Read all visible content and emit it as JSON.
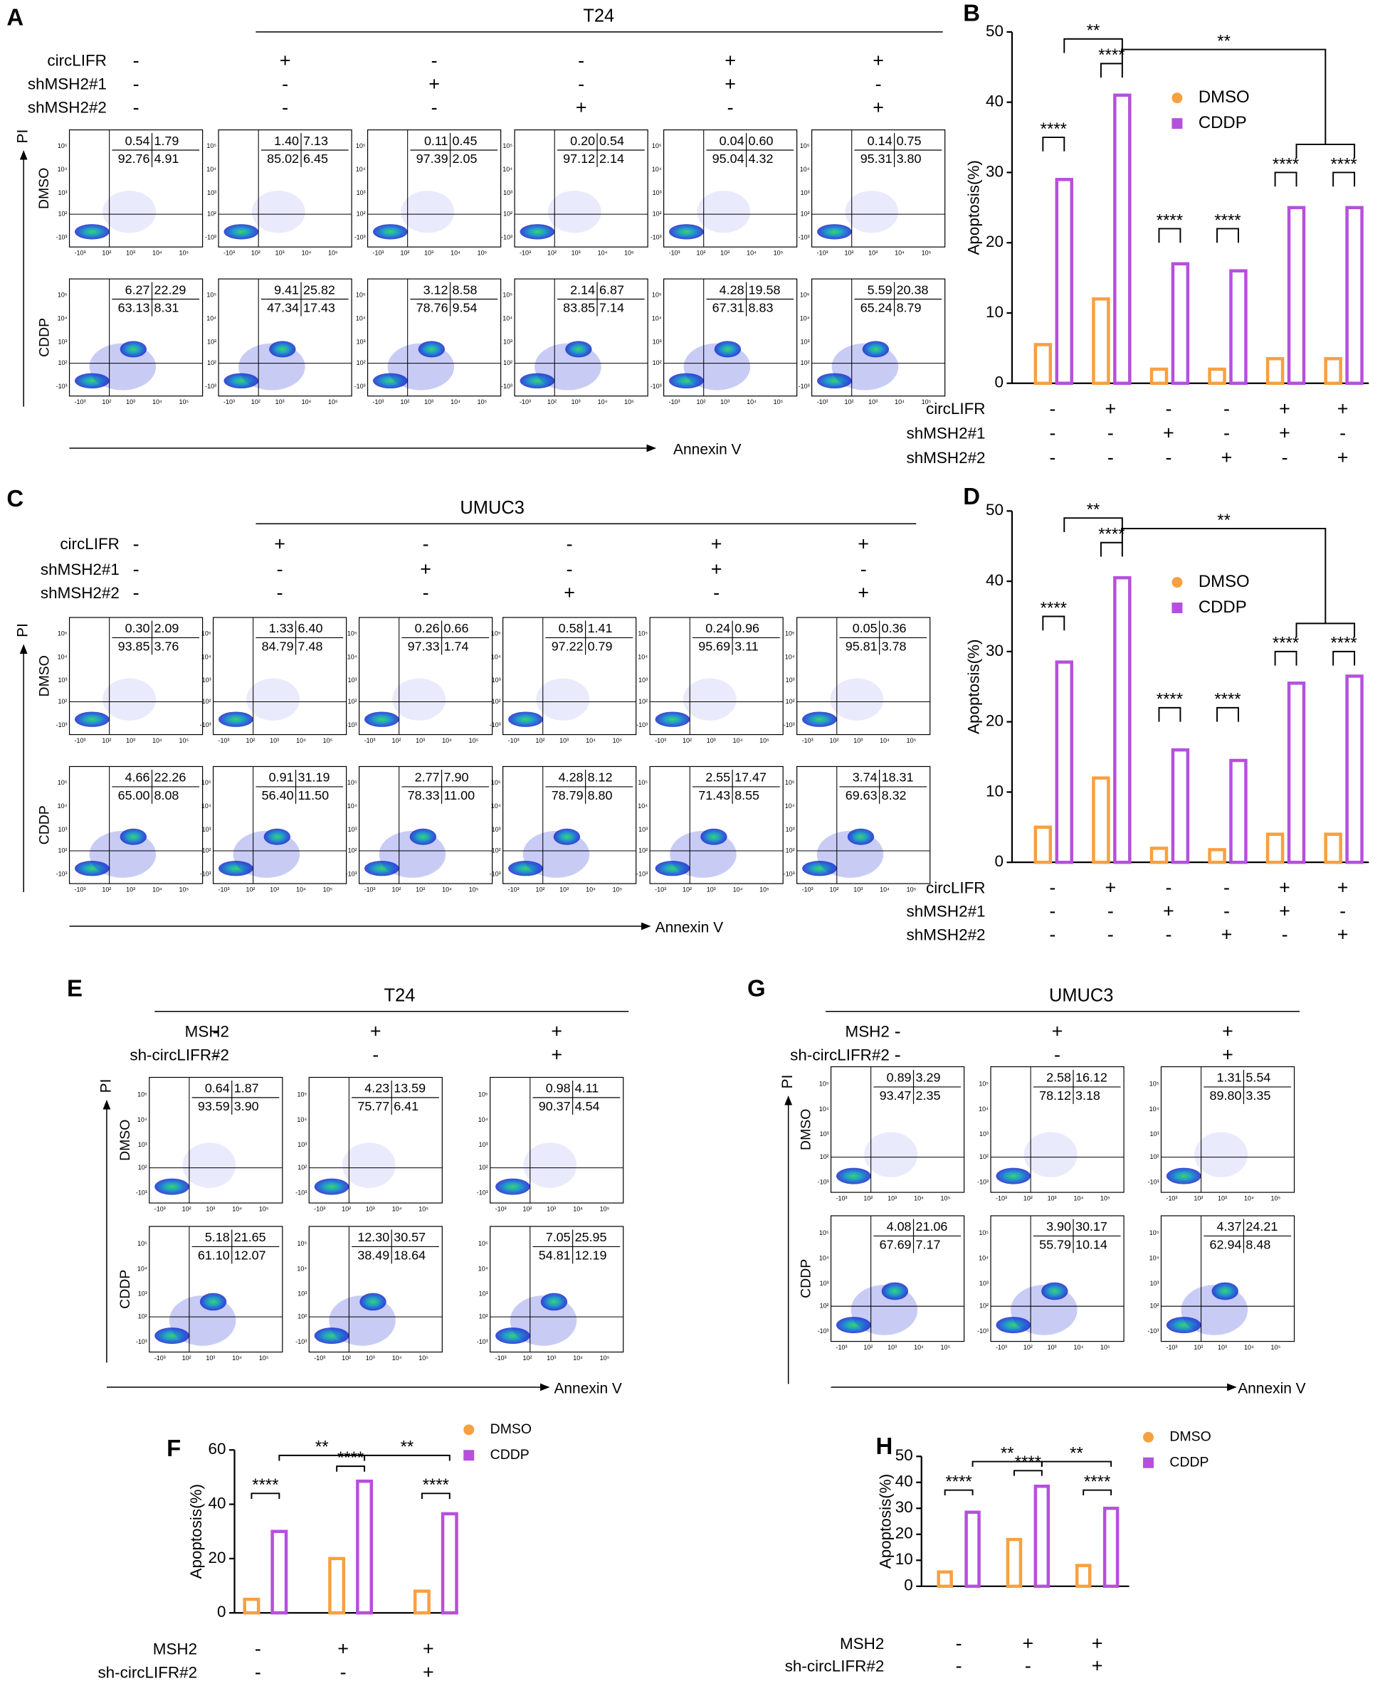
{
  "flow_panels": [
    {
      "label": "A",
      "title": "T24",
      "y_axis_label": "PI",
      "x_axis_label": "Annexin V",
      "ticks": [
        "-10³",
        "10²",
        "10³",
        "10⁴",
        "10⁵"
      ],
      "conditions": [
        {
          "name": "circLIFR",
          "values": [
            "-",
            "+",
            "-",
            "-",
            "+",
            "+"
          ]
        },
        {
          "name": "shMSH2#1",
          "values": [
            "-",
            "-",
            "+",
            "-",
            "+",
            "-"
          ]
        },
        {
          "name": "shMSH2#2",
          "values": [
            "-",
            "-",
            "-",
            "+",
            "-",
            "+"
          ]
        }
      ],
      "rows": [
        {
          "name": "DMSO",
          "plots": [
            [
              "0.54",
              "1.79",
              "92.76",
              "4.91"
            ],
            [
              "1.40",
              "7.13",
              "85.02",
              "6.45"
            ],
            [
              "0.11",
              "0.45",
              "97.39",
              "2.05"
            ],
            [
              "0.20",
              "0.54",
              "97.12",
              "2.14"
            ],
            [
              "0.04",
              "0.60",
              "95.04",
              "4.32"
            ],
            [
              "0.14",
              "0.75",
              "95.31",
              "3.80"
            ]
          ]
        },
        {
          "name": "CDDP",
          "plots": [
            [
              "6.27",
              "22.29",
              "63.13",
              "8.31"
            ],
            [
              "9.41",
              "25.82",
              "47.34",
              "17.43"
            ],
            [
              "3.12",
              "8.58",
              "78.76",
              "9.54"
            ],
            [
              "2.14",
              "6.87",
              "83.85",
              "7.14"
            ],
            [
              "4.28",
              "19.58",
              "67.31",
              "8.83"
            ],
            [
              "5.59",
              "20.38",
              "65.24",
              "8.79"
            ]
          ]
        }
      ]
    },
    {
      "label": "C",
      "title": "UMUC3",
      "y_axis_label": "PI",
      "x_axis_label": "Annexin V",
      "ticks": [
        "-10³",
        "10²",
        "10³",
        "10⁴",
        "10⁵"
      ],
      "conditions": [
        {
          "name": "circLIFR",
          "values": [
            "-",
            "+",
            "-",
            "-",
            "+",
            "+"
          ]
        },
        {
          "name": "shMSH2#1",
          "values": [
            "-",
            "-",
            "+",
            "-",
            "+",
            "-"
          ]
        },
        {
          "name": "shMSH2#2",
          "values": [
            "-",
            "-",
            "-",
            "+",
            "-",
            "+"
          ]
        }
      ],
      "rows": [
        {
          "name": "DMSO",
          "plots": [
            [
              "0.30",
              "2.09",
              "93.85",
              "3.76"
            ],
            [
              "1.33",
              "6.40",
              "84.79",
              "7.48"
            ],
            [
              "0.26",
              "0.66",
              "97.33",
              "1.74"
            ],
            [
              "0.58",
              "1.41",
              "97.22",
              "0.79"
            ],
            [
              "0.24",
              "0.96",
              "95.69",
              "3.11"
            ],
            [
              "0.05",
              "0.36",
              "95.81",
              "3.78"
            ]
          ]
        },
        {
          "name": "CDDP",
          "plots": [
            [
              "4.66",
              "22.26",
              "65.00",
              "8.08"
            ],
            [
              "0.91",
              "31.19",
              "56.40",
              "11.50"
            ],
            [
              "2.77",
              "7.90",
              "78.33",
              "11.00"
            ],
            [
              "4.28",
              "8.12",
              "78.79",
              "8.80"
            ],
            [
              "2.55",
              "17.47",
              "71.43",
              "8.55"
            ],
            [
              "3.74",
              "18.31",
              "69.63",
              "8.32"
            ]
          ]
        }
      ]
    },
    {
      "label": "E",
      "title": "T24",
      "y_axis_label": "PI",
      "x_axis_label": "Annexin V",
      "ticks": [
        "-10³",
        "10²",
        "10³",
        "10⁴",
        "10⁵"
      ],
      "conditions": [
        {
          "name": "MSH2",
          "values": [
            "-",
            "+",
            "+"
          ]
        },
        {
          "name": "sh-circLIFR#2",
          "values": [
            "-",
            "-",
            "+"
          ]
        }
      ],
      "rows": [
        {
          "name": "DMSO",
          "plots": [
            [
              "0.64",
              "1.87",
              "93.59",
              "3.90"
            ],
            [
              "4.23",
              "13.59",
              "75.77",
              "6.41"
            ],
            [
              "0.98",
              "4.11",
              "90.37",
              "4.54"
            ]
          ]
        },
        {
          "name": "CDDP",
          "plots": [
            [
              "5.18",
              "21.65",
              "61.10",
              "12.07"
            ],
            [
              "12.30",
              "30.57",
              "38.49",
              "18.64"
            ],
            [
              "7.05",
              "25.95",
              "54.81",
              "12.19"
            ]
          ]
        }
      ]
    },
    {
      "label": "G",
      "title": "UMUC3",
      "y_axis_label": "PI",
      "x_axis_label": "Annexin V",
      "ticks": [
        "-10³",
        "10²",
        "10³",
        "10⁴",
        "10⁵"
      ],
      "conditions": [
        {
          "name": "MSH2",
          "values": [
            "-",
            "+",
            "+"
          ]
        },
        {
          "name": "sh-circLIFR#2",
          "values": [
            "-",
            "-",
            "+"
          ]
        }
      ],
      "rows": [
        {
          "name": "DMSO",
          "plots": [
            [
              "0.89",
              "3.29",
              "93.47",
              "2.35"
            ],
            [
              "2.58",
              "16.12",
              "78.12",
              "3.18"
            ],
            [
              "1.31",
              "5.54",
              "89.80",
              "3.35"
            ]
          ]
        },
        {
          "name": "CDDP",
          "plots": [
            [
              "4.08",
              "21.06",
              "67.69",
              "7.17"
            ],
            [
              "3.90",
              "30.17",
              "55.79",
              "10.14"
            ],
            [
              "4.37",
              "24.21",
              "62.94",
              "8.48"
            ]
          ]
        }
      ]
    }
  ],
  "chart_data": [
    {
      "type": "bar",
      "label": "B",
      "y_label": "Apoptosis(%)",
      "ylim": [
        0,
        50
      ],
      "yticks": [
        0,
        10,
        20,
        30,
        40,
        50
      ],
      "series": [
        {
          "name": "DMSO",
          "color": "#f7a040",
          "values": [
            5.5,
            12,
            2,
            2,
            3.5,
            3.5
          ]
        },
        {
          "name": "CDDP",
          "color": "#b550dc",
          "values": [
            29,
            41,
            17,
            16,
            25,
            25
          ]
        }
      ],
      "conditions": [
        {
          "name": "circLIFR",
          "values": [
            "-",
            "+",
            "-",
            "-",
            "+",
            "+"
          ]
        },
        {
          "name": "shMSH2#1",
          "values": [
            "-",
            "-",
            "+",
            "-",
            "+",
            "-"
          ]
        },
        {
          "name": "shMSH2#2",
          "values": [
            "-",
            "-",
            "-",
            "+",
            "-",
            "+"
          ]
        }
      ],
      "annotations": [
        "****",
        "**",
        "****",
        "**",
        "****",
        "****",
        "****",
        "****"
      ]
    },
    {
      "type": "bar",
      "label": "D",
      "y_label": "Apoptosis(%)",
      "ylim": [
        0,
        50
      ],
      "yticks": [
        0,
        10,
        20,
        30,
        40,
        50
      ],
      "series": [
        {
          "name": "DMSO",
          "color": "#f7a040",
          "values": [
            5,
            12,
            2,
            1.8,
            4,
            4
          ]
        },
        {
          "name": "CDDP",
          "color": "#b550dc",
          "values": [
            28.5,
            40.5,
            16,
            14.5,
            25.5,
            26.5
          ]
        }
      ],
      "conditions": [
        {
          "name": "circLIFR",
          "values": [
            "-",
            "+",
            "-",
            "-",
            "+",
            "+"
          ]
        },
        {
          "name": "shMSH2#1",
          "values": [
            "-",
            "-",
            "+",
            "-",
            "+",
            "-"
          ]
        },
        {
          "name": "shMSH2#2",
          "values": [
            "-",
            "-",
            "-",
            "+",
            "-",
            "+"
          ]
        }
      ],
      "annotations": [
        "****",
        "**",
        "****",
        "**",
        "****",
        "****",
        "****",
        "****"
      ]
    },
    {
      "type": "bar",
      "label": "F",
      "y_label": "Apoptosis(%)",
      "ylim": [
        0,
        60
      ],
      "yticks": [
        0,
        20,
        40,
        60
      ],
      "series": [
        {
          "name": "DMSO",
          "color": "#f7a040",
          "values": [
            5,
            20,
            8
          ]
        },
        {
          "name": "CDDP",
          "color": "#b550dc",
          "values": [
            30,
            48.5,
            36.5
          ]
        }
      ],
      "conditions": [
        {
          "name": "MSH2",
          "values": [
            "-",
            "+",
            "+"
          ]
        },
        {
          "name": "sh-circLIFR#2",
          "values": [
            "-",
            "-",
            "+"
          ]
        }
      ],
      "annotations": [
        "****",
        "**",
        "****",
        "**",
        "****"
      ]
    },
    {
      "type": "bar",
      "label": "H",
      "y_label": "Apoptosis(%)",
      "ylim": [
        0,
        50
      ],
      "yticks": [
        0,
        10,
        20,
        30,
        40,
        50
      ],
      "series": [
        {
          "name": "DMSO",
          "color": "#f7a040",
          "values": [
            5.5,
            18,
            8
          ]
        },
        {
          "name": "CDDP",
          "color": "#b550dc",
          "values": [
            28.5,
            38.5,
            30
          ]
        }
      ],
      "conditions": [
        {
          "name": "MSH2",
          "values": [
            "-",
            "+",
            "+"
          ]
        },
        {
          "name": "sh-circLIFR#2",
          "values": [
            "-",
            "-",
            "+"
          ]
        }
      ],
      "annotations": [
        "****",
        "**",
        "****",
        "**",
        "****"
      ]
    }
  ]
}
